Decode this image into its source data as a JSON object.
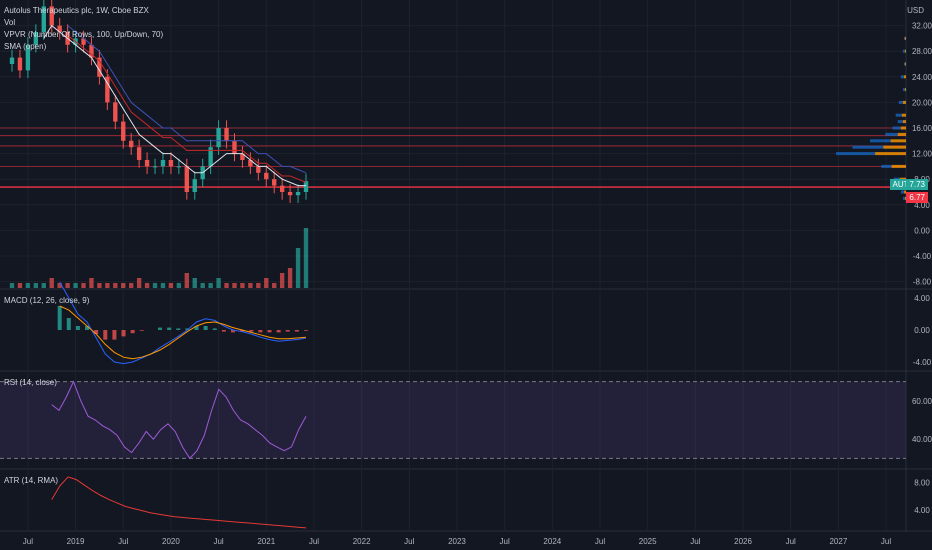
{
  "title": "Autolus Therapeutics plc, 1W, Cboe BZX",
  "indicators": {
    "vol": "Vol",
    "vpvr": "VPVR (Number Of Rows, 100, Up/Down, 70)",
    "sma": "SMA (open)",
    "macd": "MACD (12, 26, close, 9)",
    "rsi": "RSI (14, close)",
    "atr": "ATR (14, RMA)"
  },
  "currency": "USD",
  "ticker_badge": "AUTL",
  "last_price": "7.73",
  "line_price_label": "6.77",
  "colors": {
    "bg": "#131722",
    "up": "#26a69a",
    "down": "#ef5350",
    "hline": "#f23645",
    "rsi": "#9c5bd6",
    "macd": "#2962ff",
    "signal": "#ff9800",
    "atr": "#e53935"
  },
  "chart_data": [
    {
      "type": "candlestick",
      "title": "Autolus Therapeutics plc, 1W, Cboe BZX",
      "x_ticks": [
        "Jul",
        "2019",
        "Jul",
        "2020",
        "Jul",
        "2021",
        "Jul",
        "2022",
        "Jul",
        "2023",
        "Jul",
        "2024",
        "Jul",
        "2025",
        "Jul",
        "2026",
        "Jul",
        "2027",
        "Jul"
      ],
      "y_ticks": [
        "32.00",
        "28.00",
        "24.00",
        "20.00",
        "16.00",
        "12.00",
        "8.00",
        "4.00",
        "0.00",
        "-4.00",
        "-8.00"
      ],
      "ylim": [
        -9,
        36
      ],
      "x_months": [
        "2018-05",
        "2018-06",
        "2018-07",
        "2018-08",
        "2018-09",
        "2018-10",
        "2018-11",
        "2018-12",
        "2019-01",
        "2019-02",
        "2019-03",
        "2019-04",
        "2019-05",
        "2019-06",
        "2019-07",
        "2019-08",
        "2019-09",
        "2019-10",
        "2019-11",
        "2019-12",
        "2020-01",
        "2020-02",
        "2020-03",
        "2020-04",
        "2020-05",
        "2020-06",
        "2020-07",
        "2020-08",
        "2020-09",
        "2020-10",
        "2020-11",
        "2020-12",
        "2021-01",
        "2021-02",
        "2021-03",
        "2021-04",
        "2021-05",
        "2021-06"
      ],
      "close": [
        27,
        25,
        29,
        31,
        35,
        32,
        31,
        29,
        30,
        29,
        27,
        24,
        20,
        17,
        14,
        13,
        11,
        10,
        10,
        11,
        10,
        10,
        6,
        8,
        10,
        13,
        16,
        14,
        12,
        11,
        10,
        9,
        8,
        7,
        6,
        5.5,
        6,
        7.7
      ],
      "horizontal_lines": [
        16.0,
        14.8,
        13.2,
        10.0,
        6.77
      ],
      "sma": [
        null,
        null,
        null,
        null,
        30,
        32,
        31,
        30,
        29,
        28,
        27,
        25,
        23,
        21,
        19,
        17,
        15,
        14,
        13,
        12,
        12,
        11,
        10,
        9,
        9,
        10,
        11,
        12,
        12,
        12,
        11,
        10,
        10,
        9,
        8,
        7.5,
        7,
        7
      ],
      "sma2": [
        null,
        null,
        null,
        null,
        null,
        null,
        null,
        32,
        31,
        30,
        29,
        28,
        26,
        24,
        22,
        20,
        19,
        18,
        17,
        16,
        16,
        15,
        14,
        14,
        14,
        14,
        14,
        14,
        14,
        14,
        13,
        12,
        12,
        11,
        10,
        10,
        9.5,
        9
      ],
      "volume": [
        1,
        1,
        1,
        1,
        1,
        2,
        1,
        1,
        1,
        1,
        2,
        1,
        1,
        1,
        1,
        1,
        2,
        1,
        1,
        1,
        1,
        1,
        3,
        2,
        1,
        1,
        2,
        1,
        1,
        1,
        1,
        1,
        2,
        1,
        3,
        4,
        8,
        12
      ],
      "vpvr_up": [
        0,
        1,
        2,
        1,
        3,
        2,
        4,
        6,
        5,
        8,
        12,
        20,
        30,
        38,
        10,
        6,
        4,
        3,
        2
      ],
      "vpvr_down": [
        0,
        1,
        1,
        1,
        2,
        1,
        3,
        4,
        3,
        5,
        8,
        15,
        22,
        30,
        14,
        6,
        3,
        2,
        1
      ],
      "vpvr_prices": [
        33,
        30,
        28,
        26,
        24,
        22,
        20,
        18,
        17,
        16,
        15,
        14,
        13,
        12,
        10,
        8,
        7,
        6,
        5
      ]
    },
    {
      "type": "line",
      "title": "MACD (12, 26, close, 9)",
      "y_ticks": [
        "4.00",
        "0.00",
        "-4.00"
      ],
      "ylim": [
        -5,
        5
      ],
      "macd": [
        6,
        4,
        2,
        1,
        -1,
        -3,
        -4,
        -4.2,
        -4,
        -3.5,
        -3,
        -2.2,
        -1.5,
        -0.8,
        0,
        1,
        1.4,
        1.2,
        0.5,
        0,
        -0.2,
        -0.5,
        -0.9,
        -1.2,
        -1.4,
        -1.3,
        -1.2,
        -1
      ],
      "signal": [
        3,
        2.5,
        1.5,
        0.5,
        -0.5,
        -1.8,
        -2.8,
        -3.4,
        -3.6,
        -3.4,
        -3.0,
        -2.5,
        -1.8,
        -1.0,
        -0.2,
        0.5,
        0.9,
        1.0,
        0.7,
        0.3,
        0,
        -0.3,
        -0.6,
        -0.9,
        -1.1,
        -1.1,
        -1.0,
        -0.9
      ]
    },
    {
      "type": "line",
      "title": "RSI (14, close)",
      "y_ticks": [
        "60.00",
        "40.00"
      ],
      "bands": [
        70,
        30
      ],
      "ylim": [
        25,
        75
      ],
      "values": [
        58,
        55,
        62,
        70,
        60,
        52,
        50,
        47,
        45,
        42,
        36,
        33,
        38,
        44,
        40,
        45,
        48,
        44,
        36,
        30,
        34,
        42,
        55,
        66,
        62,
        55,
        50,
        48,
        45,
        42,
        38,
        36,
        34,
        36,
        45,
        52
      ]
    },
    {
      "type": "line",
      "title": "ATR (14, RMA)",
      "y_ticks": [
        "8.00",
        "4.00"
      ],
      "ylim": [
        0.8,
        9.8
      ],
      "values": [
        5.5,
        7.5,
        8.8,
        8.4,
        7.6,
        6.8,
        6.1,
        5.5,
        5.0,
        4.5,
        4.2,
        3.9,
        3.6,
        3.4,
        3.2,
        3.0,
        2.9,
        2.8,
        2.7,
        2.6,
        2.5,
        2.4,
        2.3,
        2.2,
        2.1,
        2.0,
        1.9,
        1.8,
        1.7,
        1.6,
        1.5,
        1.4
      ]
    }
  ]
}
